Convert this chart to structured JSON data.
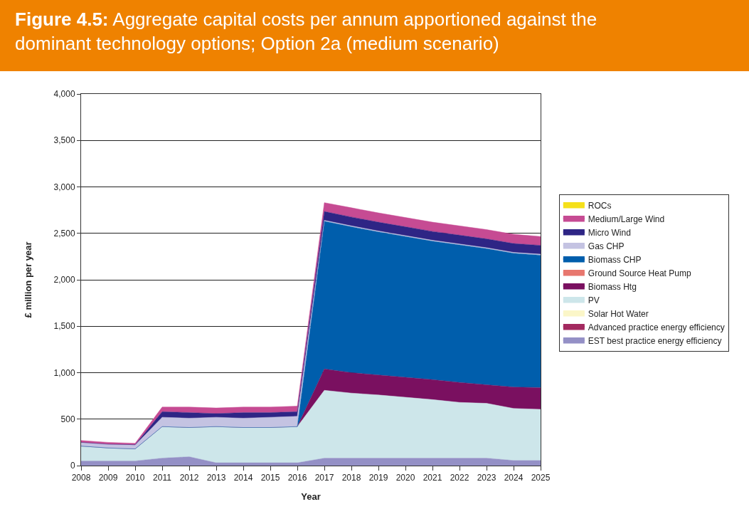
{
  "chart_data": {
    "type": "area",
    "stacked": true,
    "title": "Figure 4.5: Aggregate capital costs per annum apportioned against the dominant technology options; Option 2a (medium scenario)",
    "xlabel": "Year",
    "ylabel": "£ million per year",
    "x": [
      2008,
      2009,
      2010,
      2011,
      2012,
      2013,
      2014,
      2015,
      2016,
      2017,
      2018,
      2019,
      2020,
      2021,
      2022,
      2023,
      2024,
      2025
    ],
    "xlim": [
      2008,
      2025
    ],
    "xticks": [
      2008,
      2009,
      2010,
      2011,
      2012,
      2013,
      2014,
      2015,
      2016,
      2017,
      2018,
      2019,
      2020,
      2021,
      2022,
      2023,
      2024,
      2025
    ],
    "ylim": [
      0,
      4000
    ],
    "yticks": [
      {
        "value": 0,
        "label": "0"
      },
      {
        "value": 500,
        "label": "500"
      },
      {
        "value": 1000,
        "label": "1,000"
      },
      {
        "value": 1500,
        "label": "1,500"
      },
      {
        "value": 2000,
        "label": "2,000"
      },
      {
        "value": 2500,
        "label": "2,500"
      },
      {
        "value": 3000,
        "label": "3,000"
      },
      {
        "value": 3500,
        "label": "3,500"
      },
      {
        "value": 4000,
        "label": "4,000"
      }
    ],
    "grid": "y",
    "legend": "right",
    "series": [
      {
        "name": "EST best practice energy efficiency",
        "color": "#9490c6",
        "values": [
          50,
          50,
          50,
          80,
          95,
          30,
          30,
          30,
          30,
          80,
          80,
          80,
          80,
          80,
          80,
          80,
          55,
          55
        ]
      },
      {
        "name": "Advanced practice energy efficiency",
        "color": "#a3295f",
        "values": [
          null,
          null,
          null,
          null,
          null,
          null,
          null,
          null,
          null,
          null,
          null,
          null,
          null,
          null,
          null,
          null,
          null,
          null
        ]
      },
      {
        "name": "Solar Hot Water",
        "color": "#fbf6c8",
        "values": [
          null,
          null,
          null,
          null,
          null,
          null,
          null,
          null,
          null,
          null,
          null,
          null,
          null,
          null,
          null,
          null,
          null,
          null
        ]
      },
      {
        "name": "PV",
        "color": "#cde6ea",
        "values": [
          160,
          140,
          130,
          340,
          315,
          390,
          380,
          380,
          390,
          730,
          700,
          680,
          655,
          630,
          600,
          590,
          560,
          550
        ]
      },
      {
        "name": "Biomass Htg",
        "color": "#7a1060",
        "values": [
          0,
          0,
          0,
          0,
          0,
          0,
          0,
          0,
          0,
          230,
          220,
          215,
          215,
          215,
          215,
          200,
          230,
          235
        ]
      },
      {
        "name": "Ground Source Heat Pump",
        "color": "#e8776e",
        "values": [
          null,
          null,
          null,
          null,
          null,
          null,
          null,
          null,
          null,
          null,
          null,
          null,
          null,
          null,
          null,
          null,
          null,
          null
        ]
      },
      {
        "name": "Biomass CHP",
        "color": "#005eac",
        "values": [
          0,
          0,
          0,
          0,
          0,
          0,
          0,
          0,
          0,
          1590,
          1570,
          1540,
          1515,
          1490,
          1480,
          1465,
          1440,
          1425
        ]
      },
      {
        "name": "Gas CHP",
        "color": "#c4c3e2",
        "values": [
          40,
          40,
          40,
          100,
          100,
          100,
          100,
          110,
          110,
          10,
          10,
          10,
          10,
          10,
          10,
          10,
          10,
          10
        ]
      },
      {
        "name": "Micro Wind",
        "color": "#2e2585",
        "values": [
          0,
          0,
          5,
          60,
          60,
          40,
          60,
          50,
          50,
          95,
          95,
          95,
          95,
          95,
          95,
          95,
          95,
          95
        ]
      },
      {
        "name": "Medium/Large Wind",
        "color": "#c64b93",
        "values": [
          20,
          20,
          15,
          50,
          60,
          60,
          60,
          60,
          60,
          95,
          100,
          100,
          100,
          100,
          100,
          100,
          100,
          95
        ]
      },
      {
        "name": "ROCs",
        "color": "#f5e01a",
        "values": [
          null,
          null,
          null,
          null,
          null,
          null,
          null,
          null,
          null,
          null,
          null,
          null,
          null,
          null,
          null,
          null,
          null,
          null
        ]
      }
    ]
  }
}
